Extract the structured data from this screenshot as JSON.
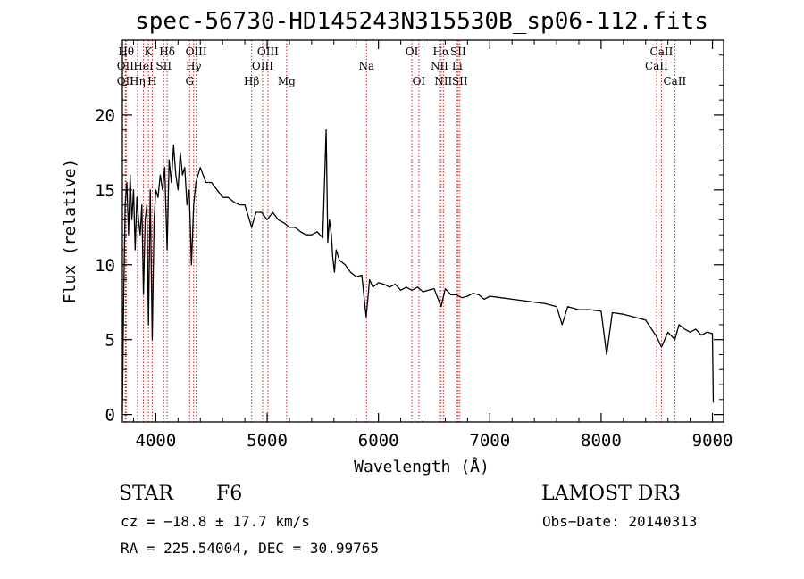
{
  "chart_data": {
    "type": "line",
    "title": "spec-56730-HD145243N315530B_sp06-112.fits",
    "xlabel": "Wavelength (Å)",
    "ylabel": "Flux (relative)",
    "xlim": [
      3700,
      9100
    ],
    "ylim": [
      -0.5,
      25
    ],
    "x_ticks": [
      4000,
      5000,
      6000,
      7000,
      8000,
      9000
    ],
    "y_ticks": [
      0,
      5,
      10,
      15,
      20
    ],
    "grid": false,
    "series": [
      {
        "color": "#000000",
        "x": [
          3700,
          3712,
          3725,
          3740,
          3755,
          3770,
          3785,
          3800,
          3815,
          3830,
          3845,
          3860,
          3875,
          3889,
          3905,
          3920,
          3934,
          3950,
          3968,
          3985,
          4000,
          4020,
          4040,
          4060,
          4080,
          4102,
          4120,
          4140,
          4160,
          4180,
          4200,
          4220,
          4240,
          4260,
          4280,
          4300,
          4320,
          4340,
          4360,
          4380,
          4400,
          4450,
          4500,
          4550,
          4600,
          4650,
          4700,
          4750,
          4800,
          4861,
          4900,
          4950,
          5000,
          5050,
          5100,
          5150,
          5200,
          5250,
          5300,
          5350,
          5400,
          5450,
          5500,
          5530,
          5545,
          5560,
          5577,
          5590,
          5605,
          5620,
          5650,
          5700,
          5750,
          5800,
          5850,
          5890,
          5920,
          5950,
          6000,
          6050,
          6100,
          6150,
          6200,
          6250,
          6300,
          6350,
          6400,
          6450,
          6500,
          6563,
          6600,
          6650,
          6700,
          6750,
          6800,
          6850,
          6900,
          6950,
          7000,
          7100,
          7200,
          7300,
          7400,
          7500,
          7600,
          7650,
          7700,
          7800,
          7900,
          8000,
          8050,
          8100,
          8200,
          8300,
          8400,
          8498,
          8542,
          8600,
          8662,
          8700,
          8750,
          8800,
          8850,
          8900,
          8950,
          9000,
          9008
        ],
        "y": [
          0.2,
          8,
          14,
          15.5,
          12,
          16,
          13,
          15,
          11,
          14.5,
          13,
          12,
          14,
          8,
          13,
          14,
          6,
          15,
          5,
          13,
          15,
          14.5,
          16,
          15,
          16.5,
          11,
          17,
          15.5,
          18,
          16,
          15,
          17.5,
          16,
          16.5,
          14,
          15,
          10,
          14,
          15.5,
          16,
          16.5,
          15.5,
          15.5,
          15,
          14.5,
          14.5,
          14.2,
          14,
          14,
          12.5,
          13.5,
          13.5,
          13,
          13.5,
          13,
          12.8,
          12.5,
          12.5,
          12.2,
          12,
          12,
          12.2,
          11.8,
          19,
          11.5,
          13,
          12,
          10.5,
          9.5,
          11,
          10.3,
          10,
          9.5,
          9.2,
          9.3,
          6.5,
          9,
          8.5,
          8.8,
          8.7,
          8.5,
          8.7,
          8.3,
          8.5,
          8.3,
          8.5,
          8.2,
          8.3,
          8.4,
          7.2,
          8.4,
          8,
          8,
          7.8,
          7.9,
          8.1,
          8,
          7.7,
          7.9,
          7.8,
          7.7,
          7.6,
          7.5,
          7.4,
          7.2,
          6,
          7.2,
          7,
          7,
          6.9,
          4,
          6.8,
          6.7,
          6.5,
          6.3,
          5.2,
          4.5,
          5.5,
          5,
          6,
          5.7,
          5.5,
          5.7,
          5.3,
          5.5,
          5.4,
          0.8
        ]
      }
    ],
    "lines": [
      {
        "wl": 3734,
        "row": 1,
        "label": "Hθ"
      },
      {
        "wl": 3727,
        "row": 2,
        "label": "OII"
      },
      {
        "wl": 3727,
        "row": 3,
        "label": "OII"
      },
      {
        "wl": 3835,
        "row": 3,
        "label": "Hη"
      },
      {
        "wl": 3889,
        "row": 2,
        "label": "HeI"
      },
      {
        "wl": 3934,
        "row": 1,
        "label": "K"
      },
      {
        "wl": 3968,
        "row": 3,
        "label": "H"
      },
      {
        "wl": 4071,
        "row": 2,
        "label": "SII"
      },
      {
        "wl": 4102,
        "row": 1,
        "label": "Hδ"
      },
      {
        "wl": 4304,
        "row": 3,
        "label": "G"
      },
      {
        "wl": 4340,
        "row": 2,
        "label": "Hγ"
      },
      {
        "wl": 4363,
        "row": 1,
        "label": "OIII"
      },
      {
        "wl": 4861,
        "row": 3,
        "label": "Hβ"
      },
      {
        "wl": 4959,
        "row": 2,
        "label": "OIII"
      },
      {
        "wl": 5007,
        "row": 1,
        "label": "OIII"
      },
      {
        "wl": 5175,
        "row": 3,
        "label": "Mg"
      },
      {
        "wl": 5893,
        "row": 2,
        "label": "Na"
      },
      {
        "wl": 6300,
        "row": 1,
        "label": "OI"
      },
      {
        "wl": 6363,
        "row": 3,
        "label": "OI"
      },
      {
        "wl": 6548,
        "row": 2,
        "label": "NII"
      },
      {
        "wl": 6563,
        "row": 1,
        "label": "Hα"
      },
      {
        "wl": 6583,
        "row": 3,
        "label": "NII"
      },
      {
        "wl": 6707,
        "row": 2,
        "label": "Li"
      },
      {
        "wl": 6716,
        "row": 1,
        "label": "SII"
      },
      {
        "wl": 6731,
        "row": 3,
        "label": "SII"
      },
      {
        "wl": 8498,
        "row": 2,
        "label": "CaII"
      },
      {
        "wl": 8542,
        "row": 1,
        "label": "CaII"
      },
      {
        "wl": 8662,
        "row": 3,
        "label": "CaII"
      }
    ]
  },
  "info": {
    "object_class": "STAR",
    "subclass": "F6",
    "survey": "LAMOST DR3",
    "cz": "cz = −18.8 ± 17.7 km/s",
    "obs_date": "Obs−Date: 20140313",
    "coords": "RA = 225.54004, DEC =  30.99765"
  }
}
